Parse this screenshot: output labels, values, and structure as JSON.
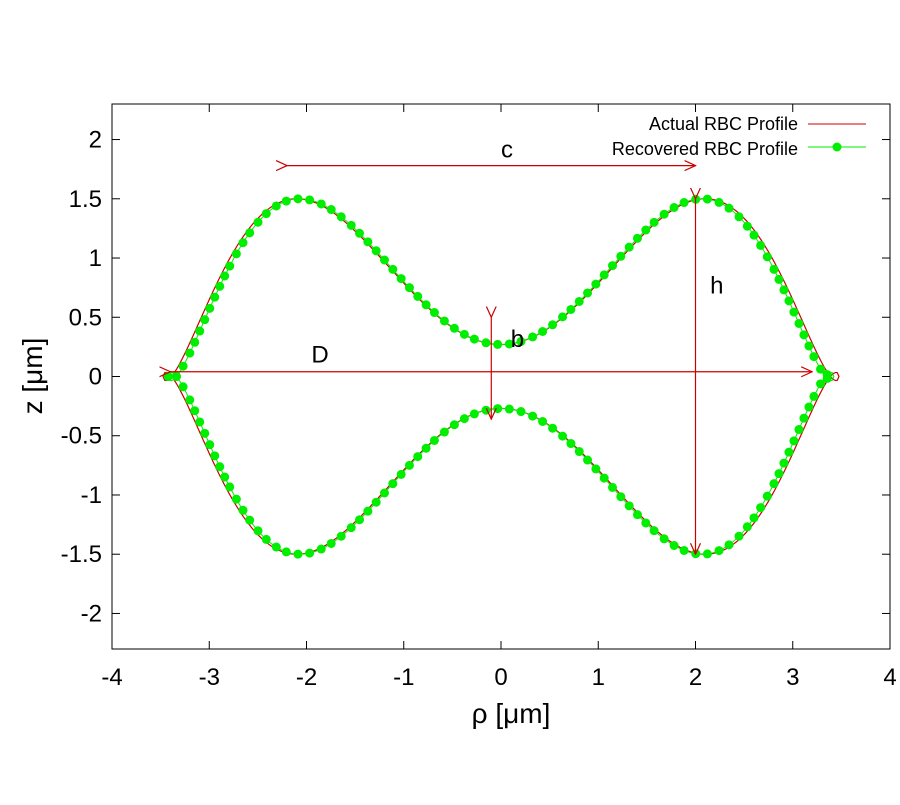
{
  "chart_data": {
    "type": "line",
    "title": "",
    "xlabel": "ρ [μm]",
    "ylabel": "z [μm]",
    "xlim": [
      -4,
      4
    ],
    "ylim": [
      -2.3,
      2.3
    ],
    "xticks": [
      -4,
      -3,
      -2,
      -1,
      0,
      1,
      2,
      3,
      4
    ],
    "yticks": [
      -2,
      -1.5,
      -1,
      -0.5,
      0,
      0.5,
      1,
      1.5,
      2
    ],
    "grid": false,
    "legend_position": "top-right",
    "shape_params": {
      "D": 6.95,
      "b": 0.54,
      "h": 3.0,
      "c": 4.2
    },
    "series": [
      {
        "name": "Actual RBC Profile",
        "color": "#cc0000",
        "style": "line"
      },
      {
        "name": "Recovered RBC Profile",
        "color": "#00ee00",
        "style": "line-points"
      }
    ],
    "annotations": [
      {
        "label": "c",
        "x1": -2.2,
        "y1": 1.78,
        "x2": 2.0,
        "y2": 1.78
      },
      {
        "label": "h",
        "x1": 2.0,
        "y1": 1.5,
        "x2": 2.0,
        "y2": -1.5
      },
      {
        "label": "D",
        "x1": -3.4,
        "y1": 0.04,
        "x2": 3.2,
        "y2": 0.04
      },
      {
        "label": "b",
        "x1": -0.1,
        "y1": 0.5,
        "x2": -0.1,
        "y2": -0.36
      }
    ]
  }
}
